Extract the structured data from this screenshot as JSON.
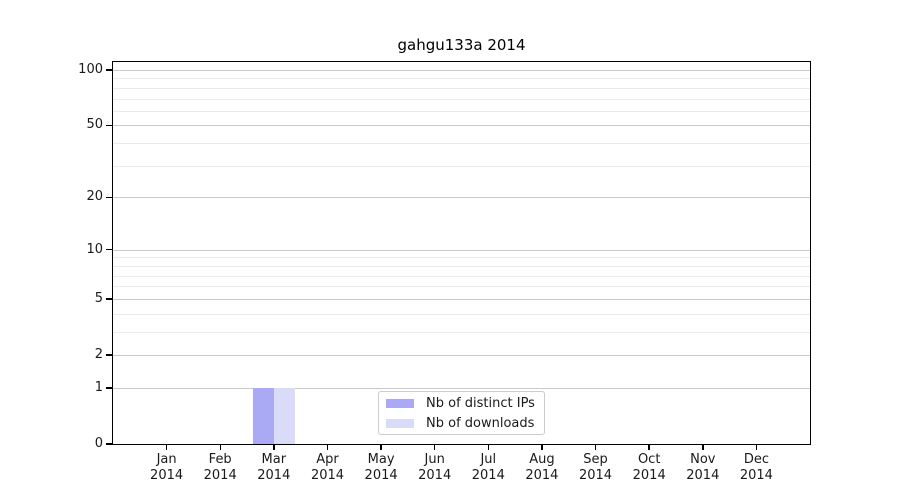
{
  "chart_data": {
    "type": "bar",
    "title": "gahgu133a 2014",
    "categories": [
      "Jan",
      "Feb",
      "Mar",
      "Apr",
      "May",
      "Jun",
      "Jul",
      "Aug",
      "Sep",
      "Oct",
      "Nov",
      "Dec"
    ],
    "x_year": "2014",
    "series": [
      {
        "name": "Nb of distinct IPs",
        "color": "#a9a9f4",
        "values": [
          0,
          0,
          1,
          0,
          0,
          0,
          0,
          0,
          0,
          0,
          0,
          0
        ]
      },
      {
        "name": "Nb of downloads",
        "color": "#dadaf9",
        "values": [
          0,
          0,
          1,
          0,
          0,
          0,
          0,
          0,
          0,
          0,
          0,
          0
        ]
      }
    ],
    "yscale": "log1p",
    "ylim": [
      0,
      115
    ],
    "y_major_ticks": [
      0,
      1,
      2,
      5,
      10,
      20,
      50,
      100
    ],
    "y_minor_gridlines": [
      3,
      4,
      6,
      7,
      8,
      9,
      30,
      40,
      60,
      70,
      80,
      90
    ],
    "grid": "horizontal",
    "legend_position": "lower-center",
    "bar_style": "side-by-side-pair"
  },
  "colors": {
    "bar_distinct_ips": "#a9a9f4",
    "bar_downloads": "#dadaf9",
    "major_grid": "#c9c9c9",
    "minor_grid": "#ebebeb",
    "axis": "#000000",
    "text": "#1a1a1a",
    "legend_border": "#cccccc",
    "background": "#ffffff"
  }
}
